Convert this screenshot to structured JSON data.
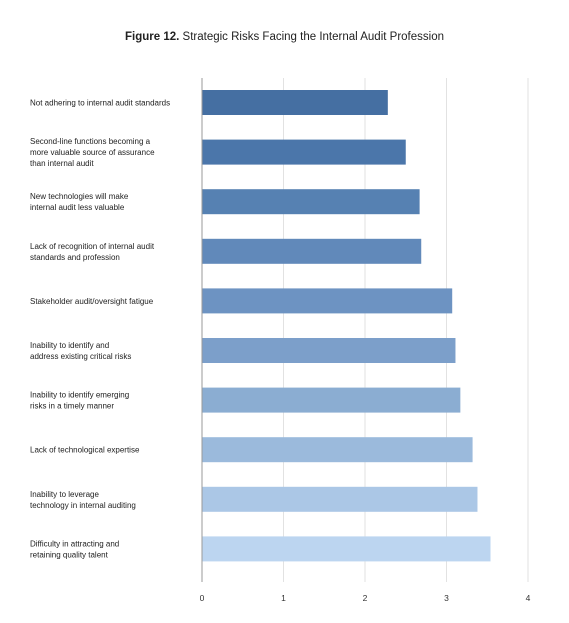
{
  "chart_data": {
    "type": "bar",
    "orientation": "horizontal",
    "title_prefix": "Figure 12.",
    "title": "Strategic Risks Facing the Internal Audit Profession",
    "categories": [
      "Not adhering to internal audit standards",
      "Second-line functions becoming a more valuable source of assurance than internal audit",
      "New technologies will make internal audit less valuable",
      "Lack of recognition of internal audit standards and profession",
      "Stakeholder audit/oversight fatigue",
      "Inability to identify and address existing critical risks",
      "Inability to identify emerging risks in a timely manner",
      "Lack of technological expertise",
      "Inability to leverage technology in internal auditing",
      "Difficulty in attracting and retaining quality talent"
    ],
    "category_lines": [
      [
        "Not adhering to internal audit standards"
      ],
      [
        "Second-line functions becoming a",
        "more valuable source of assurance",
        "than internal audit"
      ],
      [
        "New technologies will make",
        "internal audit less valuable"
      ],
      [
        "Lack of recognition of internal audit",
        "standards and profession"
      ],
      [
        "Stakeholder audit/oversight fatigue"
      ],
      [
        "Inability to identify and",
        "address existing critical risks"
      ],
      [
        "Inability to identify emerging",
        "risks in a timely manner"
      ],
      [
        "Lack of technological expertise"
      ],
      [
        "Inability to leverage",
        "technology in internal auditing"
      ],
      [
        "Difficulty in attracting and",
        "retaining quality talent"
      ]
    ],
    "values": [
      2.28,
      2.5,
      2.67,
      2.69,
      3.07,
      3.11,
      3.17,
      3.32,
      3.38,
      3.54
    ],
    "xlim": [
      0,
      4
    ],
    "xticks": [
      0,
      1,
      2,
      3,
      4
    ],
    "xlabel": "",
    "ylabel": "",
    "grid": "vertical",
    "bar_colors": [
      "#456fa2",
      "#4b76aa",
      "#5681b2",
      "#6189ba",
      "#6d93c2",
      "#7c9fca",
      "#8badd2",
      "#9bbadc",
      "#abc7e6",
      "#bcd5f0"
    ],
    "grid_color": "#e2e2e2",
    "axis_color": "#9a9a9a"
  }
}
